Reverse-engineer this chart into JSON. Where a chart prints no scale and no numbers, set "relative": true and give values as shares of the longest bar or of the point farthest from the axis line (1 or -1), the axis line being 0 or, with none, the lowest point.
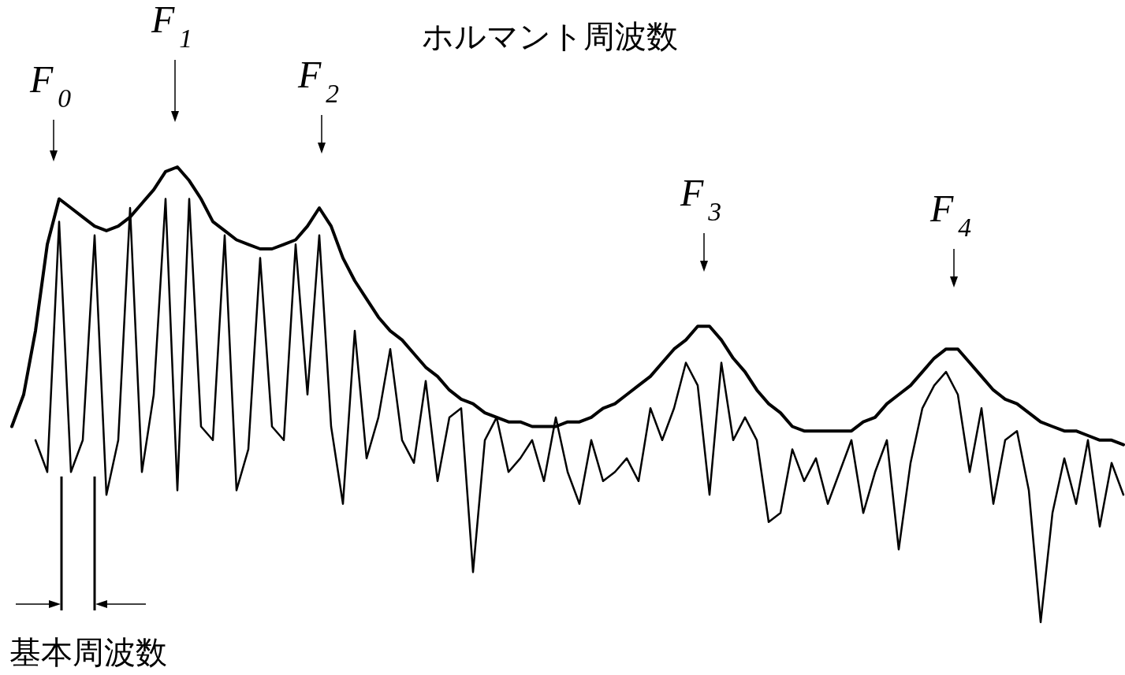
{
  "chart_data": {
    "type": "line",
    "relative": true,
    "title": "ホルマント周波数",
    "annotations": [
      "F$_{0}$",
      "F$_{1}$",
      "F$_{2}$",
      "F$_{3}$",
      "F$_{4}$",
      "基本周波数"
    ],
    "categories": [
      null,
      null,
      null,
      null,
      null,
      null,
      null,
      null,
      null,
      null,
      null,
      null,
      null,
      null,
      null,
      null,
      null,
      null,
      null,
      null,
      null,
      null,
      null,
      null,
      null,
      null,
      null,
      null,
      null,
      null,
      null,
      null,
      null,
      null,
      null,
      null,
      null,
      null,
      null,
      null,
      null,
      null,
      null,
      null,
      null,
      null,
      null,
      null,
      null,
      null,
      null,
      null,
      null,
      null,
      null,
      null,
      null,
      null,
      null,
      null,
      null,
      null,
      null,
      null,
      null,
      null,
      null,
      null,
      null,
      null,
      null,
      null,
      null,
      null,
      null,
      null,
      null,
      null,
      null,
      null,
      null,
      null,
      null,
      null,
      null,
      null,
      null,
      null,
      null,
      null,
      null,
      null,
      null,
      null,
      null
    ],
    "series": [
      {
        "color": "#000000",
        "values": [
          0.43,
          0.5,
          0.64,
          0.83,
          0.93,
          0.91,
          0.89,
          0.87,
          0.86,
          0.87,
          0.89,
          0.92,
          0.95,
          0.99,
          1,
          0.97,
          0.93,
          0.88,
          0.86,
          0.84,
          0.83,
          0.82,
          0.82,
          0.83,
          0.84,
          0.87,
          0.91,
          0.87,
          0.8,
          0.75,
          0.71,
          0.67,
          0.64,
          0.62,
          0.59,
          0.56,
          0.54,
          0.51,
          0.49,
          0.48,
          0.46,
          0.45,
          0.44,
          0.44,
          0.43,
          0.43,
          0.43,
          0.44,
          0.44,
          0.45,
          0.47,
          0.48,
          0.5,
          0.52,
          0.54,
          0.57,
          0.6,
          0.62,
          0.65,
          0.65,
          0.62,
          0.58,
          0.55,
          0.51,
          0.48,
          0.46,
          0.43,
          0.42,
          0.42,
          0.42,
          0.42,
          0.42,
          0.44,
          0.45,
          0.48,
          0.5,
          0.52,
          0.55,
          0.58,
          0.6,
          0.6,
          0.57,
          0.54,
          0.51,
          0.49,
          0.48,
          0.46,
          0.44,
          0.43,
          0.42,
          0.42,
          0.41,
          0.4,
          0.4,
          0.39
        ]
      },
      {
        "color": "#000000",
        "values": [
          null,
          null,
          0.4,
          0.33,
          0.88,
          0.33,
          0.4,
          0.85,
          0.28,
          0.4,
          0.91,
          0.33,
          0.5,
          0.93,
          0.29,
          0.93,
          0.43,
          0.4,
          0.85,
          0.29,
          0.38,
          0.8,
          0.43,
          0.4,
          0.83,
          0.5,
          0.85,
          0.43,
          0.26,
          0.64,
          0.36,
          0.45,
          0.6,
          0.4,
          0.35,
          0.53,
          0.31,
          0.45,
          0.47,
          0.11,
          0.4,
          0.45,
          0.33,
          0.36,
          0.4,
          0.31,
          0.45,
          0.33,
          0.26,
          0.4,
          0.31,
          0.33,
          0.36,
          0.31,
          0.47,
          0.4,
          0.47,
          0.57,
          0.52,
          0.28,
          0.57,
          0.4,
          0.45,
          0.4,
          0.22,
          0.24,
          0.38,
          0.31,
          0.36,
          0.26,
          0.33,
          0.4,
          0.24,
          0.33,
          0.4,
          0.16,
          0.35,
          0.47,
          0.52,
          0.55,
          0.5,
          0.33,
          0.47,
          0.26,
          0.4,
          0.42,
          0.29,
          0,
          0.24,
          0.36,
          0.26,
          0.4,
          0.21,
          0.35,
          0.28
        ]
      }
    ]
  }
}
